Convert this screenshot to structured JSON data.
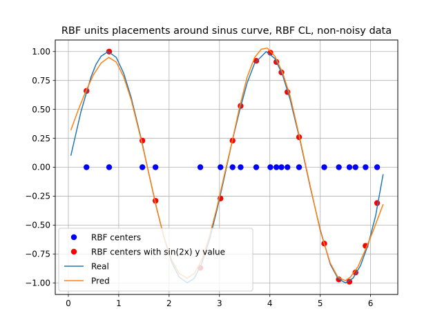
{
  "chart_data": {
    "type": "scatter",
    "title": "RBF units placements around sinus curve, RBF CL, non-noisy data",
    "xlabel": "",
    "ylabel": "",
    "xlim": [
      -0.26,
      6.54
    ],
    "ylim": [
      -1.1,
      1.1
    ],
    "xticks": [
      0,
      1,
      2,
      3,
      4,
      5,
      6
    ],
    "yticks": [
      -1.0,
      -0.75,
      -0.5,
      -0.25,
      0.0,
      0.25,
      0.5,
      0.75,
      1.0
    ],
    "xtick_labels": [
      "0",
      "1",
      "2",
      "3",
      "4",
      "5",
      "6"
    ],
    "ytick_labels": [
      "−1.00",
      "−0.75",
      "−0.50",
      "−0.25",
      "0.00",
      "0.25",
      "0.50",
      "0.75",
      "1.00"
    ],
    "grid": true,
    "legend_position": "lower-left",
    "colors": {
      "rbf_centers": "#0000ff",
      "rbf_centers_sin": "#ff0000",
      "real": "#1f77b4",
      "pred": "#ff7f0e",
      "grid": "#b0b0b0"
    },
    "legend": [
      {
        "label": "RBF centers",
        "kind": "marker",
        "color": "#0000ff"
      },
      {
        "label": "RBF centers with sin(2x) y value",
        "kind": "marker",
        "color": "#ff0000"
      },
      {
        "label": "Real",
        "kind": "line",
        "color": "#1f77b4"
      },
      {
        "label": "Pred",
        "kind": "line",
        "color": "#ff7f0e"
      }
    ],
    "series": [
      {
        "name": "RBF centers",
        "kind": "scatter",
        "x": [
          0.36,
          0.81,
          1.47,
          1.73,
          2.62,
          3.02,
          3.26,
          3.42,
          3.73,
          4.01,
          4.13,
          4.23,
          4.35,
          4.58,
          5.08,
          5.37,
          5.58,
          5.7,
          5.9,
          6.13
        ],
        "y": [
          0,
          0,
          0,
          0,
          0,
          0,
          0,
          0,
          0,
          0,
          0,
          0,
          0,
          0,
          0,
          0,
          0,
          0,
          0,
          0
        ]
      },
      {
        "name": "RBF centers with sin(2x) y value",
        "kind": "scatter",
        "x": [
          0.36,
          0.81,
          1.47,
          1.73,
          2.62,
          3.02,
          3.26,
          3.42,
          3.73,
          4.01,
          4.13,
          4.23,
          4.35,
          4.58,
          5.08,
          5.37,
          5.58,
          5.7,
          5.9,
          6.13
        ],
        "y": [
          0.66,
          1.0,
          0.23,
          -0.29,
          -0.87,
          -0.27,
          0.23,
          0.53,
          0.92,
          0.99,
          0.91,
          0.82,
          0.65,
          0.26,
          -0.66,
          -0.97,
          -0.99,
          -0.91,
          -0.68,
          -0.31
        ]
      },
      {
        "name": "Real",
        "kind": "line",
        "x": [
          0.05,
          0.25,
          0.45,
          0.55,
          0.65,
          0.79,
          0.95,
          1.1,
          1.25,
          1.45,
          1.6,
          1.75,
          1.9,
          2.05,
          2.2,
          2.36,
          2.5,
          2.65,
          2.8,
          2.95,
          3.1,
          3.25,
          3.4,
          3.55,
          3.7,
          3.93,
          4.1,
          4.25,
          4.4,
          4.6,
          4.8,
          5.0,
          5.2,
          5.35,
          5.5,
          5.65,
          5.8,
          5.95,
          6.1,
          6.25
        ],
        "y": [
          0.1,
          0.48,
          0.78,
          0.89,
          0.96,
          1.0,
          0.95,
          0.81,
          0.6,
          0.24,
          -0.06,
          -0.35,
          -0.61,
          -0.82,
          -0.95,
          -1.0,
          -0.96,
          -0.83,
          -0.63,
          -0.37,
          -0.08,
          0.22,
          0.49,
          0.73,
          0.9,
          1.0,
          0.94,
          0.8,
          0.59,
          0.23,
          -0.17,
          -0.54,
          -0.84,
          -0.96,
          -1.0,
          -0.96,
          -0.85,
          -0.67,
          -0.42,
          -0.06
        ]
      },
      {
        "name": "Pred",
        "kind": "line",
        "x": [
          0.05,
          0.2,
          0.35,
          0.5,
          0.65,
          0.8,
          0.95,
          1.1,
          1.25,
          1.45,
          1.6,
          1.75,
          1.9,
          2.05,
          2.2,
          2.36,
          2.5,
          2.65,
          2.8,
          2.95,
          3.1,
          3.25,
          3.4,
          3.55,
          3.7,
          3.83,
          3.95,
          4.1,
          4.25,
          4.4,
          4.6,
          4.8,
          5.0,
          5.2,
          5.35,
          5.5,
          5.6,
          5.75,
          5.9,
          6.05,
          6.25
        ],
        "y": [
          0.32,
          0.5,
          0.66,
          0.8,
          0.9,
          0.95,
          0.91,
          0.78,
          0.58,
          0.23,
          -0.06,
          -0.35,
          -0.61,
          -0.8,
          -0.92,
          -0.96,
          -0.92,
          -0.8,
          -0.6,
          -0.35,
          -0.06,
          0.22,
          0.52,
          0.78,
          0.95,
          1.02,
          1.03,
          0.96,
          0.82,
          0.62,
          0.24,
          -0.16,
          -0.55,
          -0.83,
          -0.95,
          -0.98,
          -0.95,
          -0.86,
          -0.71,
          -0.55,
          -0.32
        ]
      }
    ]
  }
}
